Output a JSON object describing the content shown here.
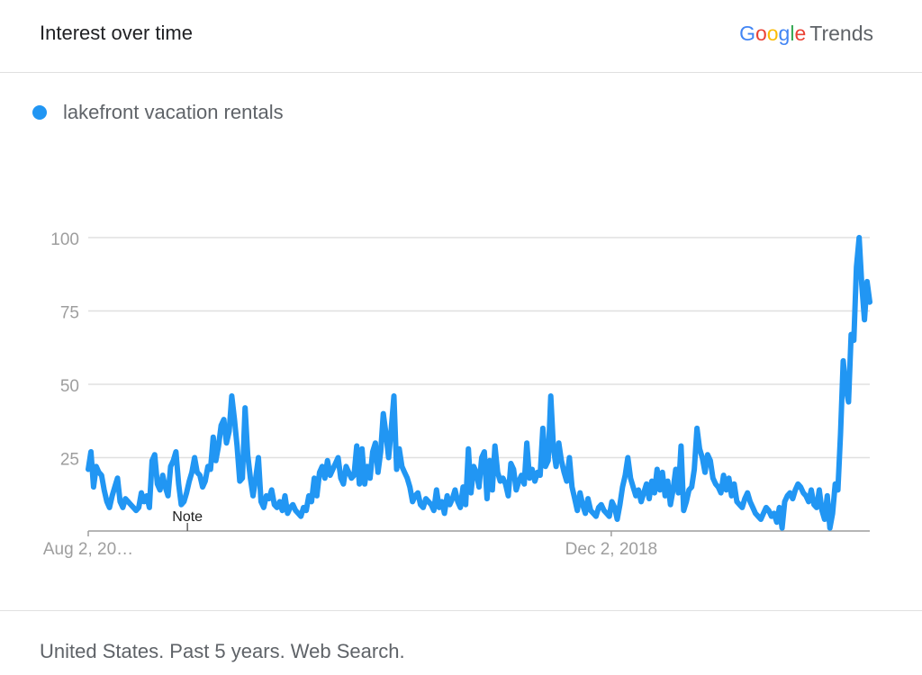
{
  "header": {
    "title": "Interest over time",
    "brand": {
      "g1": "G",
      "o1": "o",
      "o2": "o",
      "g2": "g",
      "l": "l",
      "e": "e",
      "trends": "Trends"
    }
  },
  "footer": {
    "text": "United States. Past 5 years. Web Search."
  },
  "colors": {
    "series": "#2196f3",
    "grid": "#e0e0e0",
    "axis": "#9e9e9e",
    "ticktext": "#9e9e9e"
  },
  "chart_data": {
    "type": "line",
    "title": "Interest over time",
    "xlabel": "",
    "ylabel": "",
    "ylim": [
      0,
      100
    ],
    "yticks": [
      25,
      50,
      75,
      100
    ],
    "grid": true,
    "legend_position": "top-left",
    "x_start": "Aug 2, 2015",
    "x_end": "Jul 26, 2020",
    "xticks": [
      {
        "label": "Aug 2, 20…",
        "date": "2015-08-02"
      },
      {
        "label": "Dec 2, 2018",
        "date": "2018-12-02"
      }
    ],
    "annotations": [
      {
        "label": "Note",
        "date": "2016-03-20"
      }
    ],
    "series": [
      {
        "name": "lakefront vacation rentals",
        "values": [
          21,
          27,
          15,
          22,
          20,
          19,
          14,
          10,
          8,
          12,
          15,
          18,
          10,
          8,
          11,
          10,
          9,
          8,
          7,
          8,
          13,
          10,
          12,
          8,
          24,
          26,
          16,
          14,
          19,
          15,
          12,
          22,
          24,
          27,
          16,
          9,
          10,
          13,
          17,
          20,
          25,
          20,
          19,
          15,
          17,
          22,
          21,
          32,
          24,
          29,
          36,
          38,
          30,
          34,
          46,
          38,
          29,
          17,
          18,
          42,
          26,
          18,
          12,
          18,
          25,
          10,
          8,
          12,
          11,
          14,
          9,
          8,
          10,
          7,
          12,
          6,
          8,
          9,
          7,
          6,
          5,
          8,
          7,
          12,
          10,
          18,
          12,
          20,
          22,
          18,
          24,
          19,
          21,
          23,
          25,
          18,
          16,
          22,
          20,
          18,
          19,
          29,
          16,
          28,
          16,
          22,
          18,
          27,
          30,
          20,
          27,
          40,
          33,
          25,
          35,
          46,
          21,
          28,
          22,
          20,
          18,
          15,
          10,
          12,
          13,
          9,
          8,
          11,
          10,
          9,
          7,
          14,
          8,
          10,
          6,
          12,
          9,
          11,
          14,
          10,
          8,
          15,
          9,
          28,
          13,
          22,
          20,
          15,
          25,
          27,
          11,
          24,
          14,
          29,
          20,
          17,
          18,
          16,
          12,
          23,
          21,
          14,
          17,
          19,
          16,
          30,
          18,
          21,
          17,
          20,
          19,
          35,
          22,
          24,
          46,
          28,
          22,
          30,
          24,
          20,
          17,
          25,
          15,
          11,
          7,
          13,
          9,
          6,
          11,
          7,
          6,
          5,
          8,
          9,
          7,
          6,
          5,
          10,
          8,
          4,
          9,
          15,
          19,
          25,
          18,
          15,
          12,
          14,
          10,
          13,
          16,
          11,
          17,
          13,
          21,
          14,
          20,
          12,
          17,
          9,
          14,
          21,
          13,
          29,
          7,
          10,
          14,
          15,
          21,
          35,
          28,
          25,
          20,
          26,
          24,
          18,
          16,
          15,
          13,
          19,
          14,
          18,
          12,
          16,
          10,
          9,
          8,
          11,
          13,
          10,
          8,
          6,
          5,
          4,
          6,
          8,
          7,
          5,
          6,
          3,
          8,
          1,
          10,
          12,
          13,
          11,
          14,
          16,
          15,
          13,
          12,
          10,
          14,
          9,
          8,
          14,
          7,
          4,
          12,
          1,
          6,
          16,
          14,
          33,
          58,
          49,
          44,
          67,
          65,
          90,
          100,
          84,
          72,
          85,
          78
        ]
      }
    ]
  }
}
